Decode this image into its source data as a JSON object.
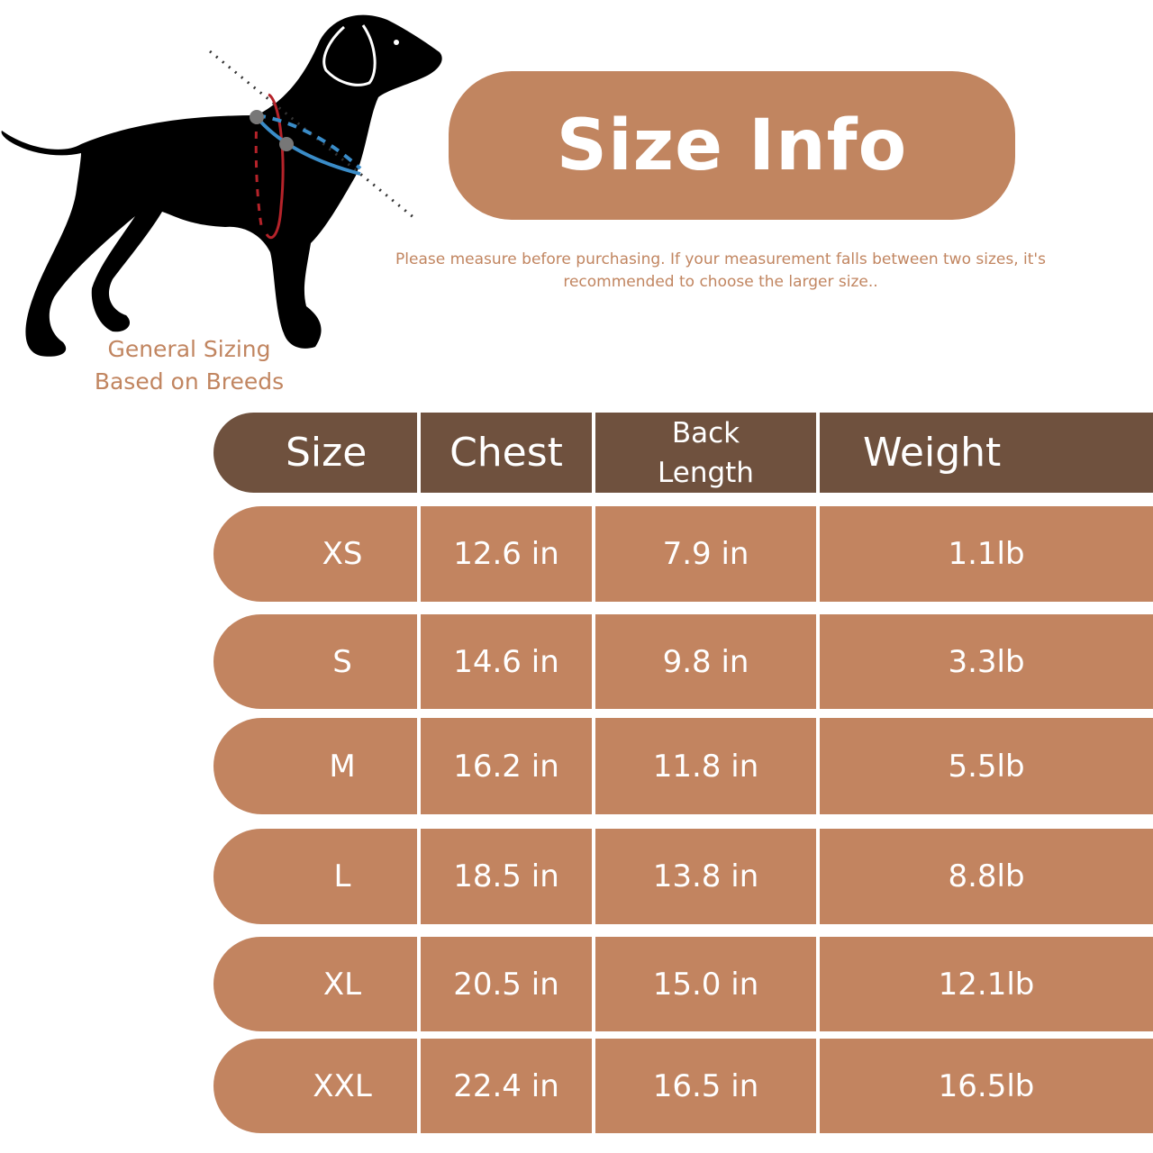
{
  "title": "Size Info",
  "note": "Please measure before purchasing. If your measurement falls between two sizes, it's recommended to choose the larger size..",
  "breed_caption": [
    "General Sizing",
    "Based on Breeds"
  ],
  "colors": {
    "header": "#6f513e",
    "row": "#c28460",
    "accent": "#c18560",
    "chest_line": "#b5232a",
    "neck_line": "#3a8cc8"
  },
  "table": {
    "headers": [
      "Size",
      "Chest",
      "Back Length",
      "Weight"
    ],
    "rows": [
      [
        "XS",
        "12.6 in",
        "7.9 in",
        "1.1lb"
      ],
      [
        "S",
        "14.6 in",
        "9.8 in",
        "3.3lb"
      ],
      [
        "M",
        "16.2 in",
        "11.8 in",
        "5.5lb"
      ],
      [
        "L",
        "18.5 in",
        "13.8 in",
        "8.8lb"
      ],
      [
        "XL",
        "20.5 in",
        "15.0 in",
        "12.1lb"
      ],
      [
        "XXL",
        "22.4 in",
        "16.5 in",
        "16.5lb"
      ]
    ]
  }
}
